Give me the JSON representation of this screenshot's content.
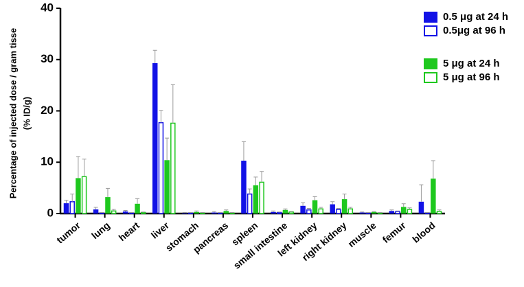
{
  "chart_data": {
    "type": "bar",
    "ylabel": [
      "Percentage of injected dose / gram tisse",
      "(% ID/g)"
    ],
    "categories": [
      "tumor",
      "lung",
      "heart",
      "liver",
      "stomach",
      "pancreas",
      "spleen",
      "small intestine",
      "left kidney",
      "right kidney",
      "muscle",
      "femur",
      "blood"
    ],
    "series": [
      {
        "name": "0.5 μg at 24 h",
        "color": "#1212e6",
        "style": "filled",
        "values": [
          2.0,
          0.8,
          0.4,
          29.3,
          0.1,
          0.2,
          10.3,
          0.3,
          1.5,
          1.8,
          0.2,
          0.5,
          2.3
        ],
        "errors": [
          0.6,
          0.4,
          0.2,
          2.5,
          0.1,
          0.2,
          3.7,
          0.2,
          0.6,
          0.5,
          0.1,
          0.2,
          3.3
        ]
      },
      {
        "name": "0.5μg at 96 h",
        "color": "#1212e6",
        "style": "outline",
        "values": [
          2.3,
          0.1,
          0.1,
          17.7,
          0.1,
          0.1,
          3.8,
          0.2,
          0.7,
          0.8,
          0.1,
          0.4,
          0.1
        ],
        "errors": [
          1.5,
          0.1,
          0.1,
          2.4,
          0.1,
          0.1,
          1.0,
          0.1,
          0.3,
          0.2,
          0.1,
          0.1,
          0.1
        ]
      },
      {
        "name": "5 μg at 24 h",
        "color": "#1ec81e",
        "style": "filled",
        "values": [
          6.9,
          3.2,
          1.9,
          10.4,
          0.3,
          0.5,
          5.5,
          0.7,
          2.6,
          2.8,
          0.3,
          1.3,
          6.8
        ],
        "errors": [
          4.2,
          1.7,
          1.0,
          4.3,
          0.2,
          0.2,
          1.6,
          0.2,
          0.7,
          1.0,
          0.1,
          0.6,
          3.5
        ]
      },
      {
        "name": "5 μg at 96 h",
        "color": "#1ec81e",
        "style": "outline",
        "values": [
          7.2,
          0.5,
          0.2,
          17.6,
          0.1,
          0.1,
          6.1,
          0.3,
          0.9,
          0.9,
          0.1,
          0.8,
          0.4
        ],
        "errors": [
          3.4,
          0.3,
          0.1,
          7.5,
          0.1,
          0.1,
          2.1,
          0.1,
          0.3,
          0.3,
          0.1,
          0.3,
          0.3
        ]
      }
    ],
    "ylim": [
      0,
      40
    ],
    "yticks": [
      0,
      10,
      20,
      30,
      40
    ],
    "grid": false,
    "legend": "top-right"
  }
}
